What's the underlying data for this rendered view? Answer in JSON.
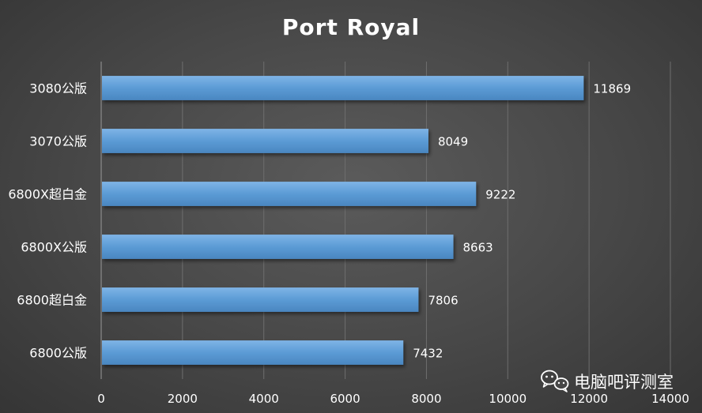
{
  "chart_data": {
    "type": "bar",
    "orientation": "horizontal",
    "title": "Port Royal",
    "categories": [
      "3080公版",
      "3070公版",
      "6800X超白金",
      "6800X公版",
      "6800超白金",
      "6800公版"
    ],
    "values": [
      11869,
      8049,
      9222,
      8663,
      7806,
      7432
    ],
    "xlim": [
      0,
      14000
    ],
    "xticks": [
      0,
      2000,
      4000,
      6000,
      8000,
      10000,
      12000,
      14000
    ],
    "grid": true,
    "bar_color": "#5b9bd5",
    "data_labels": true
  },
  "watermark": {
    "text": "电脑吧评测室",
    "icon": "wechat-icon"
  },
  "colors": {
    "background": "#474747",
    "grid": "#6e6e6e",
    "text": "#ffffff"
  }
}
